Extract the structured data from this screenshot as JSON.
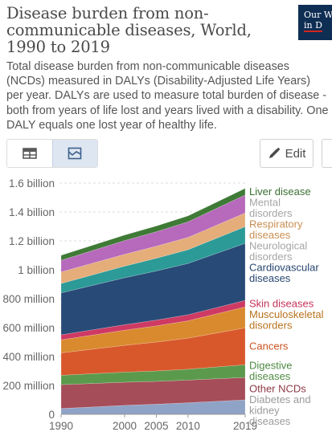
{
  "header": {
    "title": "Disease burden from non-communicable diseases, World, 1990 to 2019",
    "subtitle": "Total disease burden from non-communicable diseases (NCDs) measured in DALYs (Disability-Adjusted Life Years) per year. DALYs are used to measure total burden of disease - both from years of life lost and years lived with a disability. One DALY equals one lost year of healthy life.",
    "logo_line1": "Our W",
    "logo_line2": "in D"
  },
  "toolbar": {
    "table_icon": "table-icon",
    "chart_icon": "area-chart-icon",
    "edit_icon": "pencil-icon",
    "edit_label": "Edit"
  },
  "chart_data": {
    "type": "area",
    "stacked": true,
    "x": [
      1990,
      2000,
      2005,
      2010,
      2019
    ],
    "xticks": [
      "1990",
      "2000",
      "2005",
      "2010",
      "2019"
    ],
    "ylim": [
      0,
      1600000000
    ],
    "yticks": [
      {
        "value": 0,
        "label": "0"
      },
      {
        "value": 200000000,
        "label": "200 million"
      },
      {
        "value": 400000000,
        "label": "400 million"
      },
      {
        "value": 600000000,
        "label": "600 million"
      },
      {
        "value": 800000000,
        "label": "800 million"
      },
      {
        "value": 1000000000,
        "label": "1 billion"
      },
      {
        "value": 1200000000,
        "label": "1.2 billion"
      },
      {
        "value": 1400000000,
        "label": "1.4 billion"
      },
      {
        "value": 1600000000,
        "label": "1.6 billion"
      }
    ],
    "grid": true,
    "legend": "right, inline labels",
    "series": [
      {
        "name": "Diabetes and kidney diseases",
        "label_lines": [
          "Diabetes and",
          "kidney",
          "diseases"
        ],
        "color": "#8fa3c7",
        "text_color": "#9a9a9a",
        "values": [
          40000000,
          62000000,
          70000000,
          80000000,
          100000000
        ]
      },
      {
        "name": "Other NCDs",
        "label_lines": [
          "Other NCDs"
        ],
        "color": "#a54d59",
        "text_color": "#8e3a45",
        "values": [
          165000000,
          160000000,
          158000000,
          157000000,
          155000000
        ]
      },
      {
        "name": "Digestive diseases",
        "label_lines": [
          "Digestive",
          "diseases"
        ],
        "color": "#5b9a4c",
        "text_color": "#4e8b42",
        "values": [
          65000000,
          70000000,
          72000000,
          75000000,
          88000000
        ]
      },
      {
        "name": "Cancers",
        "label_lines": [
          "Cancers"
        ],
        "color": "#d8582b",
        "text_color": "#c9531f",
        "values": [
          155000000,
          185000000,
          200000000,
          215000000,
          255000000
        ]
      },
      {
        "name": "Musculoskeletal disorders",
        "label_lines": [
          "Musculoskeletal",
          "disorders"
        ],
        "color": "#d98a2e",
        "text_color": "#b8731e",
        "values": [
          90000000,
          105000000,
          112000000,
          120000000,
          145000000
        ]
      },
      {
        "name": "Skin diseases",
        "label_lines": [
          "Skin diseases"
        ],
        "color": "#ce3a64",
        "text_color": "#c7325b",
        "values": [
          35000000,
          38000000,
          40000000,
          42000000,
          45000000
        ]
      },
      {
        "name": "Cardiovascular diseases",
        "label_lines": [
          "Cardiovascular",
          "diseases"
        ],
        "color": "#284a77",
        "text_color": "#274670",
        "values": [
          290000000,
          325000000,
          340000000,
          355000000,
          395000000
        ]
      },
      {
        "name": "Neurological disorders",
        "label_lines": [
          "Neurological",
          "disorders"
        ],
        "color": "#2c9a97",
        "text_color": "#a5a5a5",
        "values": [
          65000000,
          80000000,
          88000000,
          95000000,
          115000000
        ]
      },
      {
        "name": "Respiratory diseases",
        "label_lines": [
          "Respiratory",
          "diseases"
        ],
        "color": "#e4ad7a",
        "text_color": "#c98d50",
        "values": [
          80000000,
          82000000,
          83000000,
          85000000,
          95000000
        ]
      },
      {
        "name": "Mental disorders",
        "label_lines": [
          "Mental",
          "disorders"
        ],
        "color": "#b769bb",
        "text_color": "#a5a5a5",
        "values": [
          80000000,
          95000000,
          100000000,
          108000000,
          125000000
        ]
      },
      {
        "name": "Liver disease",
        "label_lines": [
          "Liver disease"
        ],
        "color": "#3f7a36",
        "text_color": "#3a6e31",
        "values": [
          35000000,
          38000000,
          40000000,
          41000000,
          45000000
        ]
      }
    ]
  }
}
